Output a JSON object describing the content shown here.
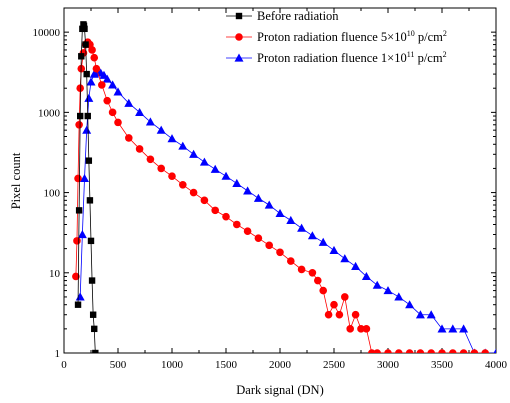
{
  "chart_data": {
    "type": "scatter",
    "xlabel": "Dark signal (DN)",
    "ylabel": "Pixel count",
    "xlim": [
      0,
      4000
    ],
    "ylim": [
      1,
      20000
    ],
    "yscale": "log",
    "x_ticks": [
      0,
      500,
      1000,
      1500,
      2000,
      2500,
      3000,
      3500,
      4000
    ],
    "x_tick_labels": [
      "0",
      "500",
      "1000",
      "1500",
      "2000",
      "2500",
      "3000",
      "3500",
      "4000"
    ],
    "y_ticks": [
      1,
      10,
      100,
      1000,
      10000
    ],
    "y_tick_labels": [
      "1",
      "10",
      "100",
      "1000",
      "10000"
    ],
    "grid": false,
    "legend_position": "top-right",
    "series": [
      {
        "name": "Before radiation",
        "color": "#000000",
        "marker": "square",
        "x": [
          130,
          140,
          150,
          160,
          170,
          180,
          185,
          190,
          200,
          210,
          220,
          230,
          240,
          250,
          260,
          270,
          280,
          290
        ],
        "y": [
          4,
          60,
          900,
          5000,
          11000,
          12500,
          12000,
          11000,
          7000,
          3000,
          900,
          250,
          80,
          25,
          8,
          3,
          2,
          1
        ]
      },
      {
        "name": "Proton radiation fluence 5×10^10 p/cm^2",
        "color": "#ff0000",
        "marker": "circle",
        "x": [
          110,
          120,
          130,
          140,
          150,
          160,
          180,
          200,
          220,
          240,
          260,
          280,
          300,
          350,
          400,
          450,
          500,
          600,
          700,
          800,
          900,
          1000,
          1100,
          1200,
          1300,
          1400,
          1500,
          1600,
          1700,
          1800,
          1900,
          2000,
          2100,
          2200,
          2300,
          2350,
          2400,
          2450,
          2500,
          2550,
          2600,
          2650,
          2700,
          2750,
          2800,
          2850,
          2900,
          3000,
          3100,
          3200,
          3300,
          3400,
          3500,
          3600,
          3700,
          3800,
          3900
        ],
        "y": [
          9,
          25,
          150,
          700,
          2000,
          3500,
          5500,
          7000,
          7500,
          7000,
          6000,
          4800,
          3500,
          2200,
          1400,
          1000,
          750,
          480,
          350,
          260,
          200,
          160,
          125,
          100,
          80,
          60,
          50,
          40,
          33,
          27,
          22,
          18,
          14,
          11,
          10,
          8,
          6,
          3,
          4,
          3,
          5,
          2,
          3,
          2,
          2,
          1,
          1,
          1,
          1,
          1,
          1,
          1,
          1,
          1,
          1,
          1,
          1
        ]
      },
      {
        "name": "Proton radiation fluence 1×10^11 p/cm^2",
        "color": "#0000ff",
        "marker": "triangle",
        "x": [
          150,
          170,
          190,
          210,
          230,
          250,
          280,
          310,
          340,
          370,
          400,
          450,
          500,
          600,
          700,
          800,
          900,
          1000,
          1100,
          1200,
          1300,
          1400,
          1500,
          1600,
          1700,
          1800,
          1900,
          2000,
          2100,
          2200,
          2300,
          2400,
          2500,
          2600,
          2700,
          2800,
          2900,
          3000,
          3100,
          3200,
          3300,
          3400,
          3500,
          3600,
          3700,
          3800,
          3900,
          4000
        ],
        "y": [
          5,
          30,
          150,
          600,
          1500,
          2400,
          3000,
          3200,
          3100,
          2900,
          2600,
          2200,
          1800,
          1300,
          1000,
          760,
          600,
          470,
          380,
          300,
          240,
          195,
          160,
          130,
          105,
          85,
          70,
          55,
          45,
          36,
          29,
          24,
          19,
          15,
          12,
          9,
          7,
          6,
          5,
          4,
          3,
          3,
          2,
          2,
          2,
          1,
          1,
          1
        ]
      }
    ]
  }
}
